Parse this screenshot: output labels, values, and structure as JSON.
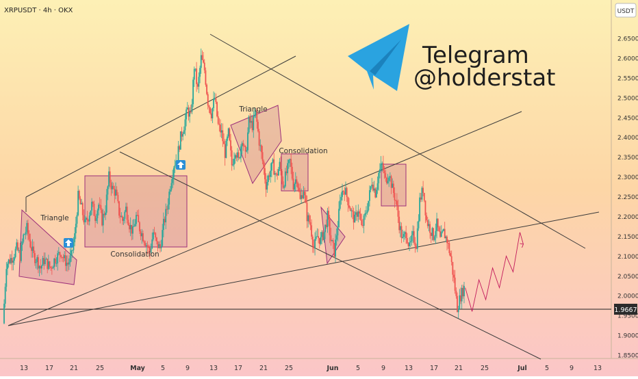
{
  "header": {
    "symbol": "XRPUSDT · 4h · OKX",
    "currency": "USDT"
  },
  "brand": {
    "name": "Telegram",
    "handle": "@holderstat"
  },
  "annotations": {
    "triangle_1": "Triangle",
    "consolidation_1": "Consolidation",
    "triangle_2": "Triangle",
    "consolidation_2": "Consolidation"
  },
  "current_price": "1.9667",
  "colors": {
    "up": "#26a69a",
    "down": "#ef5350",
    "box": "#9c2f7a",
    "line": "#3a3a3a",
    "telegram": "#2aa3e0"
  },
  "chart_data": {
    "type": "candlestick",
    "title": "XRPUSDT · 4h · OKX",
    "ylabel": "USDT",
    "ylim": [
      1.83,
      2.7
    ],
    "y_ticks": [
      "2.6500",
      "2.6000",
      "2.5500",
      "2.5000",
      "2.4500",
      "2.4000",
      "2.3500",
      "2.3000",
      "2.2500",
      "2.2000",
      "2.1500",
      "2.1000",
      "2.0500",
      "2.0000",
      "1.9500",
      "1.9000",
      "1.8500"
    ],
    "x_ticks": [
      "13",
      "17",
      "21",
      "25",
      "May",
      "5",
      "9",
      "13",
      "17",
      "21",
      "25",
      "Jun",
      "5",
      "9",
      "13",
      "17",
      "21",
      "25",
      "Jul",
      "5",
      "9",
      "13"
    ],
    "path": [
      [
        0,
        1.93
      ],
      [
        1,
        2.08
      ],
      [
        2,
        2.09
      ],
      [
        3,
        2.1
      ],
      [
        4,
        2.12
      ],
      [
        5,
        2.1
      ],
      [
        6,
        2.15
      ],
      [
        7,
        2.17
      ],
      [
        8,
        2.13
      ],
      [
        9,
        2.1
      ],
      [
        10,
        2.09
      ],
      [
        11,
        2.07
      ],
      [
        12,
        2.09
      ],
      [
        13,
        2.08
      ],
      [
        14,
        2.07
      ],
      [
        15,
        2.09
      ],
      [
        16,
        2.1
      ],
      [
        17,
        2.11
      ],
      [
        18,
        2.09
      ],
      [
        19,
        2.08
      ],
      [
        20,
        2.1
      ],
      [
        21,
        2.15
      ],
      [
        22,
        2.25
      ],
      [
        23,
        2.22
      ],
      [
        24,
        2.18
      ],
      [
        25,
        2.2
      ],
      [
        26,
        2.23
      ],
      [
        27,
        2.2
      ],
      [
        28,
        2.23
      ],
      [
        29,
        2.19
      ],
      [
        30,
        2.22
      ],
      [
        31,
        2.3
      ],
      [
        32,
        2.27
      ],
      [
        33,
        2.26
      ],
      [
        34,
        2.21
      ],
      [
        35,
        2.19
      ],
      [
        36,
        2.22
      ],
      [
        37,
        2.18
      ],
      [
        38,
        2.16
      ],
      [
        39,
        2.2
      ],
      [
        40,
        2.17
      ],
      [
        41,
        2.15
      ],
      [
        42,
        2.13
      ],
      [
        43,
        2.11
      ],
      [
        44,
        2.16
      ],
      [
        45,
        2.13
      ],
      [
        46,
        2.12
      ],
      [
        47,
        2.18
      ],
      [
        48,
        2.22
      ],
      [
        49,
        2.28
      ],
      [
        50,
        2.33
      ],
      [
        51,
        2.35
      ],
      [
        52,
        2.4
      ],
      [
        53,
        2.43
      ],
      [
        54,
        2.47
      ],
      [
        55,
        2.45
      ],
      [
        56,
        2.58
      ],
      [
        57,
        2.52
      ],
      [
        58,
        2.6
      ],
      [
        59,
        2.57
      ],
      [
        60,
        2.49
      ],
      [
        61,
        2.46
      ],
      [
        62,
        2.5
      ],
      [
        63,
        2.43
      ],
      [
        64,
        2.41
      ],
      [
        65,
        2.36
      ],
      [
        66,
        2.41
      ],
      [
        67,
        2.33
      ],
      [
        68,
        2.37
      ],
      [
        69,
        2.34
      ],
      [
        70,
        2.4
      ],
      [
        71,
        2.35
      ],
      [
        72,
        2.44
      ],
      [
        73,
        2.43
      ],
      [
        74,
        2.46
      ],
      [
        75,
        2.39
      ],
      [
        76,
        2.34
      ],
      [
        77,
        2.28
      ],
      [
        78,
        2.31
      ],
      [
        79,
        2.33
      ],
      [
        80,
        2.3
      ],
      [
        81,
        2.33
      ],
      [
        82,
        2.28
      ],
      [
        83,
        2.31
      ],
      [
        84,
        2.34
      ],
      [
        85,
        2.28
      ],
      [
        86,
        2.3
      ],
      [
        87,
        2.24
      ],
      [
        88,
        2.27
      ],
      [
        89,
        2.2
      ],
      [
        90,
        2.18
      ],
      [
        91,
        2.12
      ],
      [
        92,
        2.15
      ],
      [
        93,
        2.14
      ],
      [
        94,
        2.16
      ],
      [
        95,
        2.2
      ],
      [
        96,
        2.14
      ],
      [
        97,
        2.11
      ],
      [
        98,
        2.18
      ],
      [
        99,
        2.26
      ],
      [
        100,
        2.27
      ],
      [
        101,
        2.24
      ],
      [
        102,
        2.21
      ],
      [
        103,
        2.19
      ],
      [
        104,
        2.22
      ],
      [
        105,
        2.17
      ],
      [
        106,
        2.2
      ],
      [
        107,
        2.24
      ],
      [
        108,
        2.29
      ],
      [
        109,
        2.26
      ],
      [
        110,
        2.31
      ],
      [
        111,
        2.33
      ],
      [
        112,
        2.29
      ],
      [
        113,
        2.31
      ],
      [
        114,
        2.27
      ],
      [
        115,
        2.24
      ],
      [
        116,
        2.18
      ],
      [
        117,
        2.14
      ],
      [
        118,
        2.16
      ],
      [
        119,
        2.12
      ],
      [
        120,
        2.15
      ],
      [
        121,
        2.13
      ],
      [
        122,
        2.24
      ],
      [
        123,
        2.27
      ],
      [
        124,
        2.19
      ],
      [
        125,
        2.17
      ],
      [
        126,
        2.15
      ],
      [
        127,
        2.18
      ],
      [
        128,
        2.14
      ],
      [
        129,
        2.16
      ],
      [
        130,
        2.14
      ],
      [
        131,
        2.1
      ],
      [
        132,
        2.04
      ],
      [
        133,
        1.97
      ],
      [
        134,
        2.0
      ],
      [
        135,
        2.02
      ]
    ],
    "projection": [
      [
        135,
        2.02
      ],
      [
        137,
        1.96
      ],
      [
        139,
        2.04
      ],
      [
        141,
        1.99
      ],
      [
        143,
        2.07
      ],
      [
        145,
        2.02
      ],
      [
        147,
        2.1
      ],
      [
        149,
        2.06
      ],
      [
        151,
        2.16
      ],
      [
        152,
        2.13
      ]
    ]
  }
}
